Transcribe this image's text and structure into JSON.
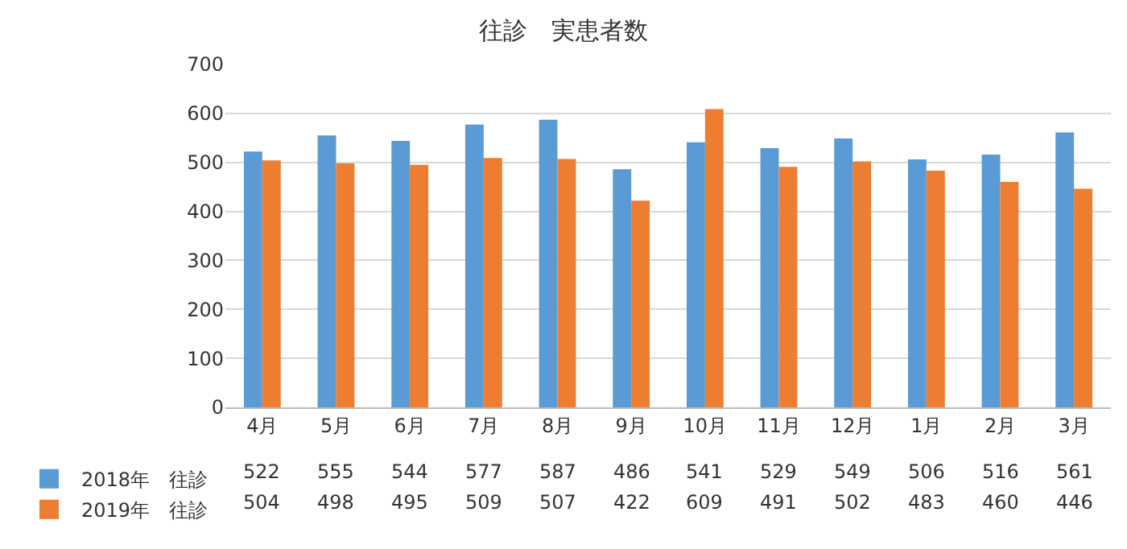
{
  "chart_data": {
    "type": "bar",
    "title": "往診　実患者数",
    "categories": [
      "4月",
      "5月",
      "6月",
      "7月",
      "8月",
      "9月",
      "10月",
      "11月",
      "12月",
      "1月",
      "2月",
      "3月"
    ],
    "series": [
      {
        "name": "2018年　往診",
        "color": "#5b9bd5",
        "values": [
          522,
          555,
          544,
          577,
          587,
          486,
          541,
          529,
          549,
          506,
          516,
          561
        ]
      },
      {
        "name": "2019年　往診",
        "color": "#ed7d31",
        "values": [
          504,
          498,
          495,
          509,
          507,
          422,
          609,
          491,
          502,
          483,
          460,
          446
        ]
      }
    ],
    "ylim": [
      0,
      700
    ],
    "yticks": [
      0,
      100,
      200,
      300,
      400,
      500,
      600,
      700
    ],
    "grid": "y",
    "legend": "bottom left",
    "data_labels": true
  }
}
